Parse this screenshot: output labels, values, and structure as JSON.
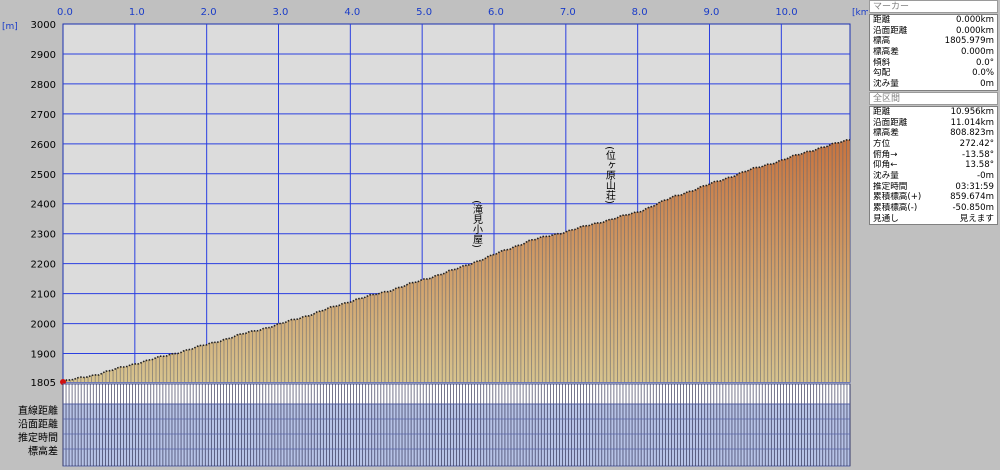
{
  "chart_data": {
    "type": "area",
    "x_unit": "[km]",
    "y_unit": "[m]",
    "x_ticks": [
      0.0,
      1.0,
      2.0,
      3.0,
      4.0,
      5.0,
      6.0,
      7.0,
      8.0,
      9.0,
      10.0
    ],
    "x_tick_labels": [
      "0.0",
      "1.0",
      "2.0",
      "3.0",
      "4.0",
      "5.0",
      "6.0",
      "7.0",
      "8.0",
      "9.0",
      "10.0"
    ],
    "xlim": [
      0,
      10.956
    ],
    "y_ticks": [
      1805,
      1900,
      2000,
      2100,
      2200,
      2300,
      2400,
      2500,
      2600,
      2700,
      2800,
      2900,
      3000
    ],
    "ylim": [
      1805,
      3000
    ],
    "grid": true,
    "profile": {
      "x": [
        0.0,
        0.5,
        1.0,
        1.5,
        2.0,
        2.5,
        3.0,
        3.5,
        4.0,
        4.5,
        5.0,
        5.5,
        6.0,
        6.5,
        7.0,
        7.5,
        8.0,
        8.5,
        9.0,
        9.5,
        10.0,
        10.5,
        10.956
      ],
      "y": [
        1806,
        1832,
        1866,
        1897,
        1930,
        1965,
        1997,
        2034,
        2075,
        2107,
        2145,
        2184,
        2230,
        2277,
        2307,
        2340,
        2372,
        2423,
        2465,
        2508,
        2545,
        2584,
        2614
      ]
    },
    "annotations": [
      {
        "x": 5.75,
        "y": 2212,
        "text": "(滝見小屋)"
      },
      {
        "x": 7.6,
        "y": 2392,
        "text": "(位ヶ原山荘)"
      }
    ],
    "bottom_rows": [
      "直線距離",
      "沿面距離",
      "推定時間",
      "標高差"
    ]
  },
  "marker": {
    "title": "マーカー",
    "rows": [
      {
        "label": "距離",
        "value": "0.000km"
      },
      {
        "label": "沿面距離",
        "value": "0.000km"
      },
      {
        "label": "標高",
        "value": "1805.979m"
      },
      {
        "label": "標高差",
        "value": "0.000m"
      },
      {
        "label": "傾斜",
        "value": "0.0°"
      },
      {
        "label": "勾配",
        "value": "0.0%"
      },
      {
        "label": "沈み量",
        "value": "0m"
      }
    ]
  },
  "section": {
    "title": "全区間",
    "rows": [
      {
        "label": "距離",
        "value": "10.956km"
      },
      {
        "label": "沿面距離",
        "value": "11.014km"
      },
      {
        "label": "標高差",
        "value": "808.823m"
      },
      {
        "label": "方位",
        "value": "272.42°"
      },
      {
        "label": "俯角→",
        "value": "-13.58°"
      },
      {
        "label": "仰角←",
        "value": "13.58°"
      },
      {
        "label": "沈み量",
        "value": "-0m"
      },
      {
        "label": "推定時間",
        "value": "03:31:59"
      },
      {
        "label": "累積標高(+)",
        "value": "859.674m"
      },
      {
        "label": "累積標高(-)",
        "value": "-50.850m"
      },
      {
        "label": "見通し",
        "value": "見えます"
      }
    ]
  },
  "colors": {
    "plot_bg": "#dcdcdc",
    "grid": "#2a3fe0",
    "fill_top": "#c8743f",
    "fill_bottom": "#d7c38e",
    "bar_stroke": "#6a6a70",
    "x_label": "#1a3cc8"
  }
}
